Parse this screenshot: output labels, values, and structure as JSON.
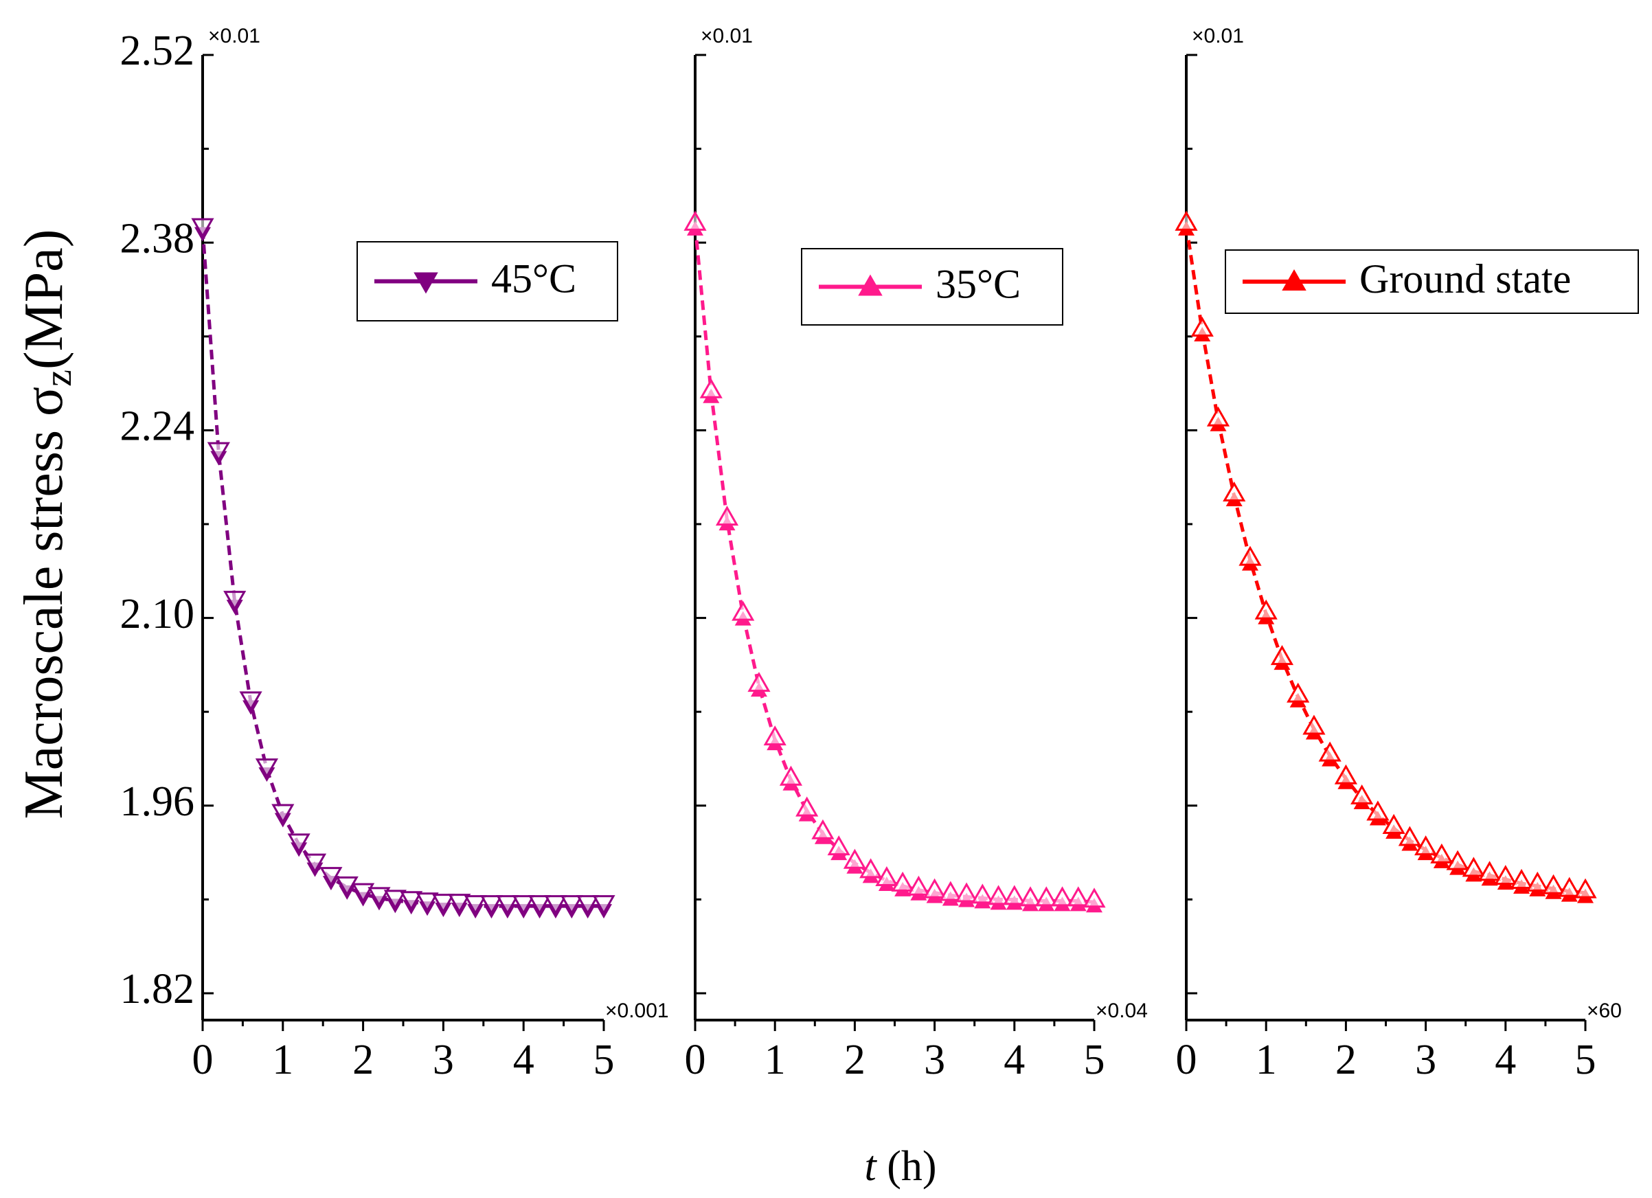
{
  "y_label": {
    "text": "Macroscale stress σ",
    "sub": "z",
    "unit": "(MPa)"
  },
  "x_label": {
    "var": "t",
    "unit": "(h)"
  },
  "chart_data": [
    {
      "type": "line",
      "marker": "triangle-down",
      "top_multiplier": "×0.01",
      "x_multiplier": "×0.001",
      "ylim": [
        1.8,
        2.52
      ],
      "yticks": [
        1.82,
        1.96,
        {
          "value": 2.1,
          "label": "2.10"
        },
        2.24,
        2.38,
        2.52
      ],
      "xlim": [
        0,
        5
      ],
      "xticks": [
        0,
        1,
        2,
        3,
        4,
        5
      ],
      "x": [
        0,
        0.2,
        0.4,
        0.6,
        0.8,
        1,
        1.2,
        1.4,
        1.6,
        1.8,
        2,
        2.2,
        2.4,
        2.6,
        2.8,
        3,
        3.2,
        3.4,
        3.6,
        3.8,
        4,
        4.2,
        4.4,
        4.6,
        4.8,
        5
      ],
      "series": [
        {
          "name": "45°C",
          "color": "#800080",
          "values": [
            2.39,
            2.223,
            2.112,
            2.037,
            1.987,
            1.953,
            1.931,
            1.916,
            1.906,
            1.899,
            1.894,
            1.891,
            1.889,
            1.888,
            1.887,
            1.886,
            1.886,
            1.885,
            1.885,
            1.885,
            1.885,
            1.885,
            1.885,
            1.885,
            1.885,
            1.885
          ]
        }
      ]
    },
    {
      "type": "line",
      "marker": "triangle-up",
      "top_multiplier": "×0.01",
      "x_multiplier": "×0.04",
      "xlim": [
        0,
        5
      ],
      "xticks": [
        0,
        1,
        2,
        3,
        4,
        5
      ],
      "x": [
        0,
        0.2,
        0.4,
        0.6,
        0.8,
        1,
        1.2,
        1.4,
        1.6,
        1.8,
        2,
        2.2,
        2.4,
        2.6,
        2.8,
        3,
        3.2,
        3.4,
        3.6,
        3.8,
        4,
        4.2,
        4.4,
        4.6,
        4.8,
        5
      ],
      "series": [
        {
          "name": "35°C",
          "color": "#ff1a8c",
          "values": [
            2.393,
            2.268,
            2.173,
            2.102,
            2.049,
            2.009,
            1.979,
            1.956,
            1.939,
            1.927,
            1.917,
            1.91,
            1.904,
            1.9,
            1.897,
            1.895,
            1.893,
            1.892,
            1.891,
            1.89,
            1.89,
            1.889,
            1.889,
            1.889,
            1.889,
            1.888
          ]
        }
      ]
    },
    {
      "type": "line",
      "marker": "triangle-up",
      "top_multiplier": "×0.01",
      "x_multiplier": "×60",
      "xlim": [
        0,
        5
      ],
      "xticks": [
        0,
        1,
        2,
        3,
        4,
        5
      ],
      "x": [
        0,
        0.2,
        0.4,
        0.6,
        0.8,
        1,
        1.2,
        1.4,
        1.6,
        1.8,
        2,
        2.2,
        2.4,
        2.6,
        2.8,
        3,
        3.2,
        3.4,
        3.6,
        3.8,
        4,
        4.2,
        4.4,
        4.6,
        4.8,
        5
      ],
      "series": [
        {
          "name": "Ground state",
          "color": "#ff0000",
          "values": [
            2.393,
            2.314,
            2.247,
            2.191,
            2.143,
            2.103,
            2.069,
            2.041,
            2.017,
            1.997,
            1.98,
            1.965,
            1.953,
            1.943,
            1.934,
            1.927,
            1.921,
            1.916,
            1.911,
            1.908,
            1.905,
            1.902,
            1.9,
            1.898,
            1.896,
            1.895
          ]
        }
      ]
    }
  ]
}
